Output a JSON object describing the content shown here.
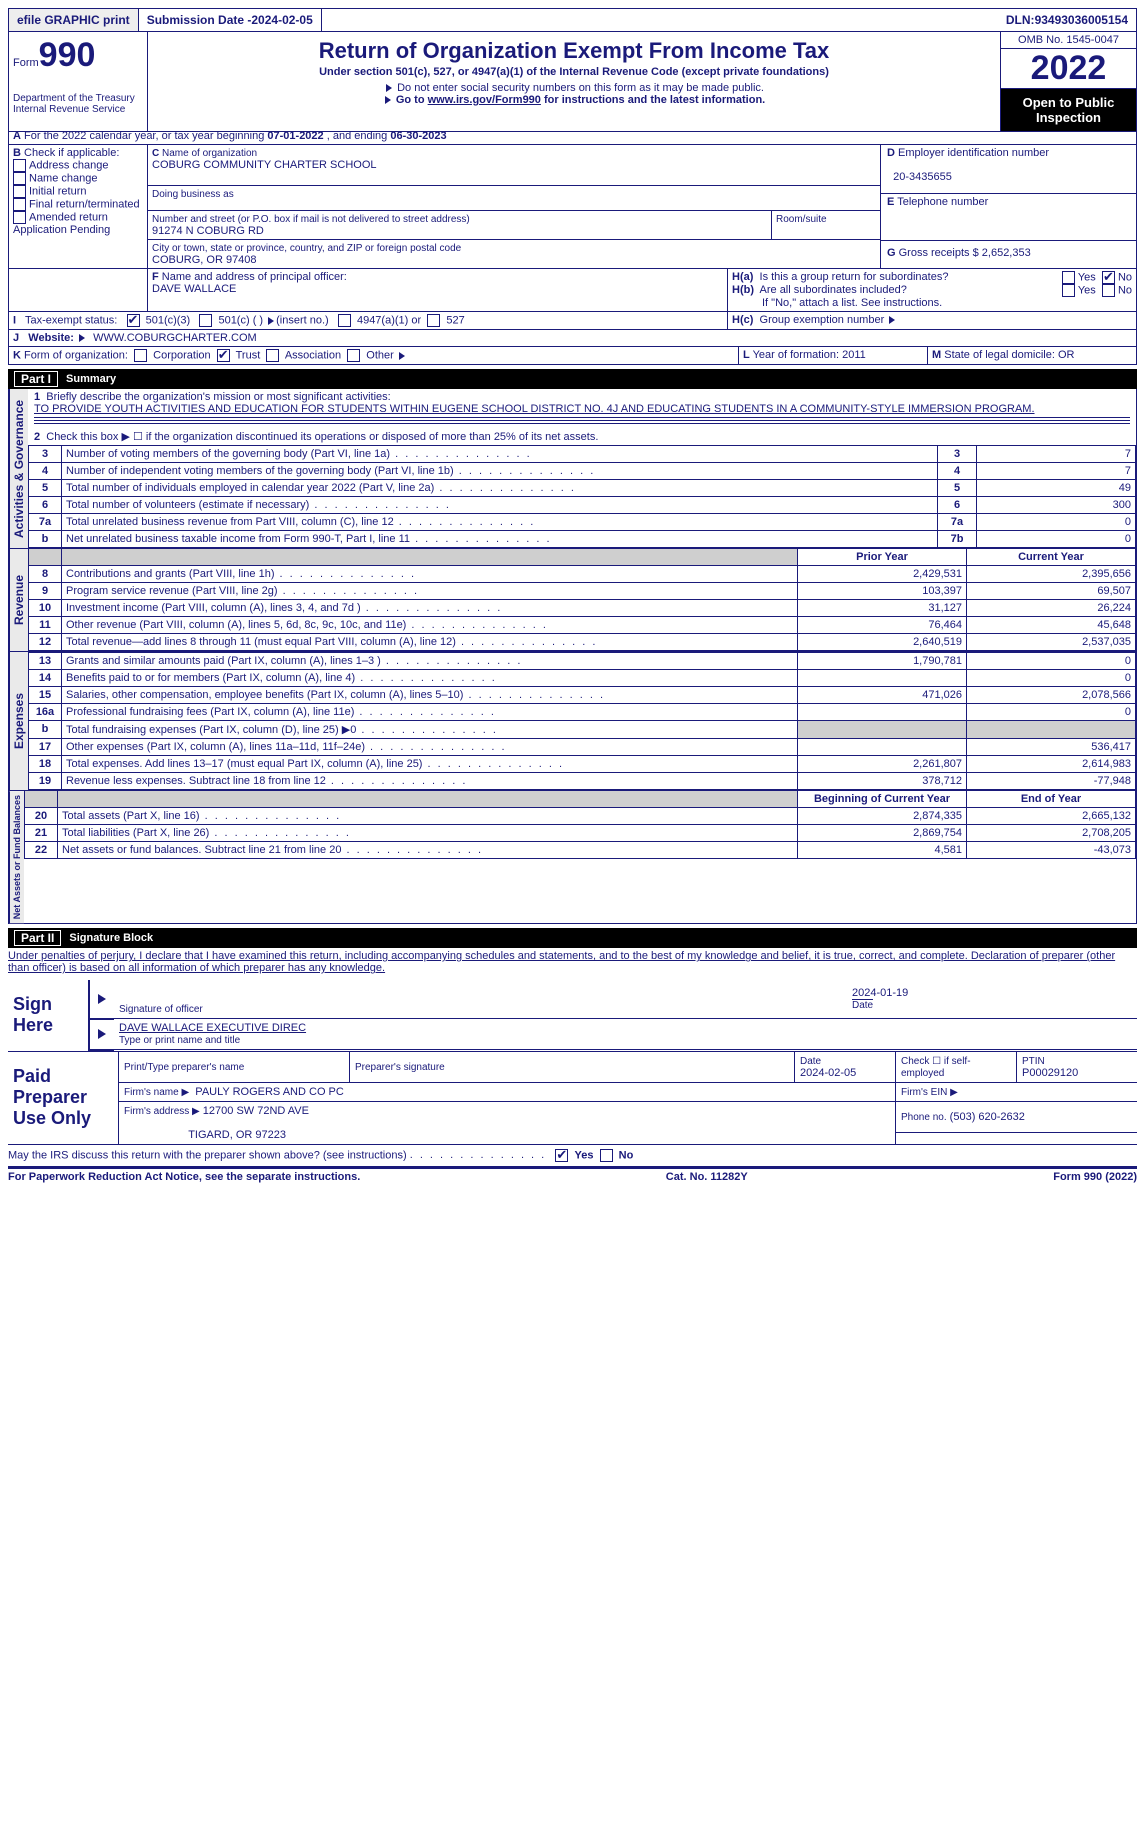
{
  "topbar": {
    "efile": "efile GRAPHIC print",
    "submission_label": "Submission Date - ",
    "submission_date": "2024-02-05",
    "dln_label": "DLN: ",
    "dln": "93493036005154"
  },
  "header": {
    "form_prefix": "Form",
    "form_number": "990",
    "dept": "Department of the Treasury\nInternal Revenue Service",
    "title": "Return of Organization Exempt From Income Tax",
    "subtitle": "Under section 501(c), 527, or 4947(a)(1) of the Internal Revenue Code (except private foundations)",
    "note1": "Do not enter social security numbers on this form as it may be made public.",
    "note2_a": "Go to ",
    "note2_link": "www.irs.gov/Form990",
    "note2_b": " for instructions and the latest information.",
    "omb": "OMB No. 1545-0047",
    "year": "2022",
    "open": "Open to Public Inspection"
  },
  "A": {
    "text_a": "For the 2022 calendar year, or tax year beginning ",
    "begin": "07-01-2022",
    "text_b": ", and ending ",
    "end": "06-30-2023"
  },
  "B": {
    "label": "Check if applicable:",
    "items": [
      "Address change",
      "Name change",
      "Initial return",
      "Final return/terminated",
      "Amended return",
      "Application Pending"
    ]
  },
  "C": {
    "name_label": "Name of organization",
    "name": "COBURG COMMUNITY CHARTER SCHOOL",
    "dba_label": "Doing business as",
    "street_label": "Number and street (or P.O. box if mail is not delivered to street address)",
    "room_label": "Room/suite",
    "street": "91274 N COBURG RD",
    "city_label": "City or town, state or province, country, and ZIP or foreign postal code",
    "city": "COBURG, OR  97408"
  },
  "D": {
    "label": "Employer identification number",
    "value": "20-3435655"
  },
  "E": {
    "label": "Telephone number",
    "value": ""
  },
  "G": {
    "label": "Gross receipts $",
    "value": "2,652,353"
  },
  "F": {
    "label": "Name and address of principal officer:",
    "value": "DAVE WALLACE"
  },
  "H": {
    "a": "Is this a group return for subordinates?",
    "b": "Are all subordinates included?",
    "b_note": "If \"No,\" attach a list. See instructions.",
    "c": "Group exemption number",
    "yes": "Yes",
    "no": "No"
  },
  "I": {
    "label": "Tax-exempt status:",
    "opts": [
      "501(c)(3)",
      "501(c) (  ) ",
      "(insert no.)",
      "4947(a)(1) or",
      "527"
    ]
  },
  "J": {
    "label": "Website:",
    "value": "WWW.COBURGCHARTER.COM"
  },
  "K": {
    "label": "Form of organization:",
    "opts": [
      "Corporation",
      "Trust",
      "Association",
      "Other"
    ]
  },
  "L": {
    "label": "Year of formation:",
    "value": "2011"
  },
  "M": {
    "label": "State of legal domicile:",
    "value": "OR"
  },
  "partI": {
    "title": "Summary",
    "part": "Part I",
    "q1_label": "Briefly describe the organization's mission or most significant activities:",
    "q1_text": "TO PROVIDE YOUTH ACTIVITIES AND EDUCATION FOR STUDENTS WITHIN EUGENE SCHOOL DISTRICT NO. 4J AND EDUCATING STUDENTS IN A COMMUNITY-STYLE IMMERSION PROGRAM.",
    "q2": "Check this box ▶ ☐ if the organization discontinued its operations or disposed of more than 25% of its net assets.",
    "lines_ag": [
      {
        "n": "3",
        "t": "Number of voting members of the governing body (Part VI, line 1a)",
        "box": "3",
        "v": "7"
      },
      {
        "n": "4",
        "t": "Number of independent voting members of the governing body (Part VI, line 1b)",
        "box": "4",
        "v": "7"
      },
      {
        "n": "5",
        "t": "Total number of individuals employed in calendar year 2022 (Part V, line 2a)",
        "box": "5",
        "v": "49"
      },
      {
        "n": "6",
        "t": "Total number of volunteers (estimate if necessary)",
        "box": "6",
        "v": "300"
      },
      {
        "n": "7a",
        "t": "Total unrelated business revenue from Part VIII, column (C), line 12",
        "box": "7a",
        "v": "0"
      },
      {
        "n": "b",
        "t": "Net unrelated business taxable income from Form 990-T, Part I, line 11",
        "box": "7b",
        "v": "0"
      }
    ],
    "col_prior": "Prior Year",
    "col_current": "Current Year",
    "revenue": [
      {
        "n": "8",
        "t": "Contributions and grants (Part VIII, line 1h)",
        "p": "2,429,531",
        "c": "2,395,656"
      },
      {
        "n": "9",
        "t": "Program service revenue (Part VIII, line 2g)",
        "p": "103,397",
        "c": "69,507"
      },
      {
        "n": "10",
        "t": "Investment income (Part VIII, column (A), lines 3, 4, and 7d )",
        "p": "31,127",
        "c": "26,224"
      },
      {
        "n": "11",
        "t": "Other revenue (Part VIII, column (A), lines 5, 6d, 8c, 9c, 10c, and 11e)",
        "p": "76,464",
        "c": "45,648"
      },
      {
        "n": "12",
        "t": "Total revenue—add lines 8 through 11 (must equal Part VIII, column (A), line 12)",
        "p": "2,640,519",
        "c": "2,537,035"
      }
    ],
    "expenses": [
      {
        "n": "13",
        "t": "Grants and similar amounts paid (Part IX, column (A), lines 1–3 )",
        "p": "1,790,781",
        "c": "0"
      },
      {
        "n": "14",
        "t": "Benefits paid to or for members (Part IX, column (A), line 4)",
        "p": "",
        "c": "0"
      },
      {
        "n": "15",
        "t": "Salaries, other compensation, employee benefits (Part IX, column (A), lines 5–10)",
        "p": "471,026",
        "c": "2,078,566"
      },
      {
        "n": "16a",
        "t": "Professional fundraising fees (Part IX, column (A), line 11e)",
        "p": "",
        "c": "0"
      },
      {
        "n": "b",
        "t": "Total fundraising expenses (Part IX, column (D), line 25) ▶0",
        "p": "GREY",
        "c": "GREY"
      },
      {
        "n": "17",
        "t": "Other expenses (Part IX, column (A), lines 11a–11d, 11f–24e)",
        "p": "",
        "c": "536,417"
      },
      {
        "n": "18",
        "t": "Total expenses. Add lines 13–17 (must equal Part IX, column (A), line 25)",
        "p": "2,261,807",
        "c": "2,614,983"
      },
      {
        "n": "19",
        "t": "Revenue less expenses. Subtract line 18 from line 12",
        "p": "378,712",
        "c": "-77,948"
      }
    ],
    "col_begin": "Beginning of Current Year",
    "col_end": "End of Year",
    "netassets": [
      {
        "n": "20",
        "t": "Total assets (Part X, line 16)",
        "p": "2,874,335",
        "c": "2,665,132"
      },
      {
        "n": "21",
        "t": "Total liabilities (Part X, line 26)",
        "p": "2,869,754",
        "c": "2,708,205"
      },
      {
        "n": "22",
        "t": "Net assets or fund balances. Subtract line 21 from line 20",
        "p": "4,581",
        "c": "-43,073"
      }
    ],
    "side_ag": "Activities & Governance",
    "side_rev": "Revenue",
    "side_exp": "Expenses",
    "side_na": "Net Assets or Fund Balances"
  },
  "partII": {
    "part": "Part II",
    "title": "Signature Block",
    "decl": "Under penalties of perjury, I declare that I have examined this return, including accompanying schedules and statements, and to the best of my knowledge and belief, it is true, correct, and complete. Declaration of preparer (other than officer) is based on all information of which preparer has any knowledge.",
    "sign_here": "Sign Here",
    "sig_officer": "Signature of officer",
    "sig_date": "2024-01-19",
    "date_label": "Date",
    "officer_name": "DAVE WALLACE  EXECUTIVE DIREC",
    "type_name": "Type or print name and title",
    "paid": "Paid Preparer Use Only",
    "prep_name_label": "Print/Type preparer's name",
    "prep_sig_label": "Preparer's signature",
    "prep_date_label": "Date",
    "prep_date": "2024-02-05",
    "check_if": "Check ☐ if self-employed",
    "ptin_label": "PTIN",
    "ptin": "P00029120",
    "firm_name_label": "Firm's name   ▶",
    "firm_name": "PAULY ROGERS AND CO PC",
    "firm_ein_label": "Firm's EIN ▶",
    "firm_addr_label": "Firm's address ▶",
    "firm_addr1": "12700 SW 72ND AVE",
    "firm_addr2": "TIGARD, OR  97223",
    "phone_label": "Phone no.",
    "phone": "(503) 620-2632",
    "discuss": "May the IRS discuss this return with the preparer shown above? (see instructions)"
  },
  "footer": {
    "left": "For Paperwork Reduction Act Notice, see the separate instructions.",
    "mid": "Cat. No. 11282Y",
    "right": "Form 990 (2022)"
  }
}
